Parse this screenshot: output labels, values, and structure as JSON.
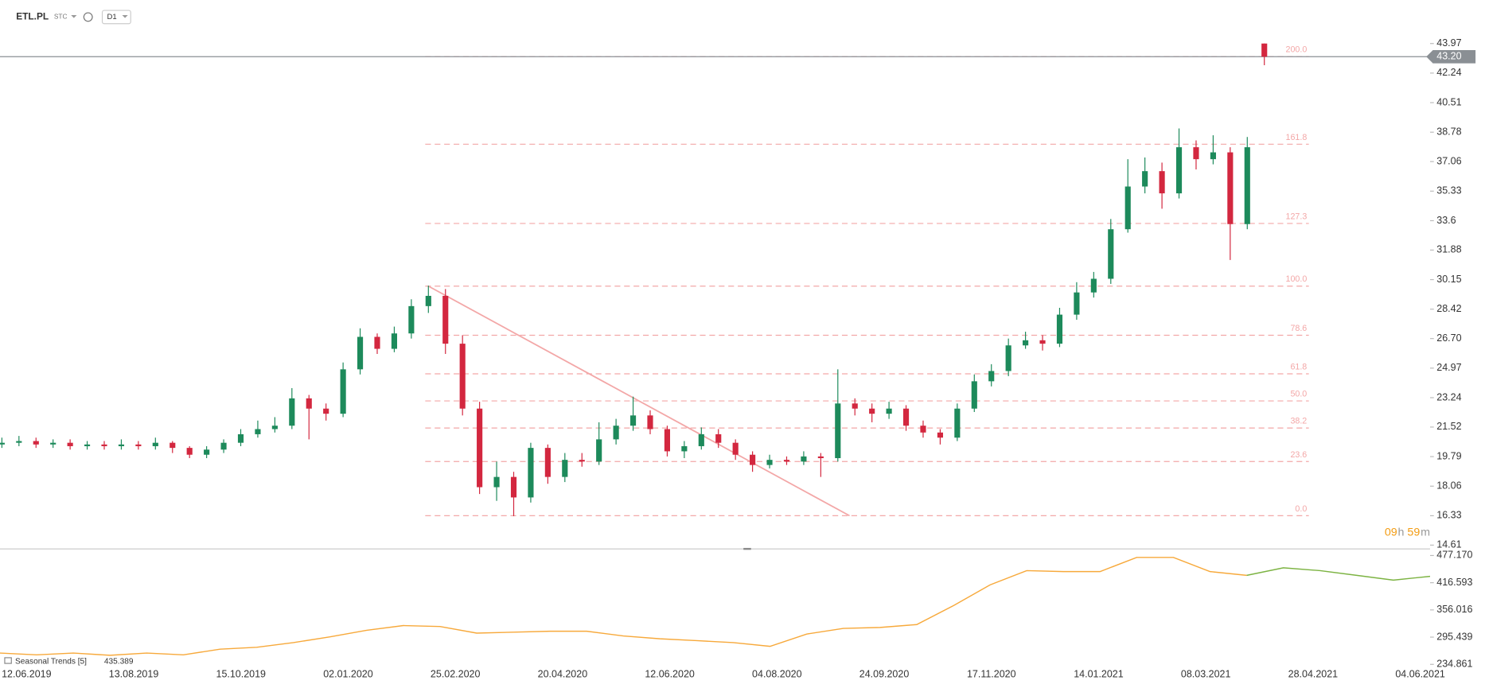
{
  "header": {
    "symbol": "ETL.PL",
    "market": "STC",
    "interval": "D1"
  },
  "countdown": [
    "09",
    "h",
    "59",
    "m"
  ],
  "x_axis_labels": [
    "12.06.2019",
    "13.08.2019",
    "15.10.2019",
    "02.01.2020",
    "25.02.2020",
    "20.04.2020",
    "12.06.2020",
    "04.08.2020",
    "24.09.2020",
    "17.11.2020",
    "14.01.2021",
    "08.03.2021",
    "28.04.2021",
    "04.06.2021"
  ],
  "chart_data": [
    {
      "type": "candlestick",
      "up_color": "#1d8a5b",
      "down_color": "#d3273f",
      "ylim": [
        14.61,
        43.97
      ],
      "yticks": [
        43.97,
        42.24,
        40.51,
        38.78,
        37.06,
        35.33,
        33.6,
        31.88,
        30.15,
        28.42,
        {
          "value": 26.7,
          "label": "26.70"
        },
        24.97,
        23.24,
        21.52,
        19.79,
        18.06,
        16.33,
        14.61
      ],
      "last_price": {
        "value": 43.2,
        "label": "43.20"
      },
      "fib": {
        "color": "#f3a7a7",
        "from": 29.77,
        "to": 16.33,
        "levels": [
          {
            "value": 200,
            "label": "200.0"
          },
          {
            "value": 161.8,
            "label": "161.8"
          },
          {
            "value": 127.3,
            "label": "127.3"
          },
          {
            "value": 100,
            "label": "100.0"
          },
          {
            "value": 78.6,
            "label": "78.6"
          },
          {
            "value": 61.8,
            "label": "61.8"
          },
          {
            "value": 50,
            "label": "50.0"
          },
          {
            "value": 38.2,
            "label": "38.2"
          },
          {
            "value": 23.6,
            "label": "23.6"
          },
          {
            "value": 0,
            "label": "0.0"
          }
        ]
      },
      "open": [
        20.5,
        20.6,
        20.7,
        20.5,
        20.6,
        20.4,
        20.5,
        20.4,
        20.5,
        20.4,
        20.6,
        20.3,
        19.9,
        20.2,
        20.6,
        21.1,
        21.4,
        21.6,
        23.2,
        22.6,
        22.3,
        24.9,
        26.8,
        26.1,
        27.0,
        28.6,
        29.2,
        26.4,
        22.6,
        18.0,
        18.6,
        17.4,
        20.3,
        18.6,
        19.6,
        19.5,
        20.8,
        21.6,
        22.2,
        21.4,
        20.1,
        20.4,
        21.1,
        20.6,
        19.9,
        19.3,
        19.6,
        19.5,
        19.8,
        19.7,
        22.9,
        22.6,
        22.3,
        22.6,
        21.6,
        21.2,
        20.9,
        22.6,
        24.2,
        24.8,
        26.3,
        26.6,
        26.4,
        28.1,
        29.4,
        30.2,
        33.1,
        35.6,
        36.5,
        35.2,
        37.9,
        37.2,
        37.6,
        33.4,
        43.97
      ],
      "high": [
        20.9,
        21.0,
        20.9,
        20.8,
        20.8,
        20.7,
        20.7,
        20.8,
        20.7,
        20.9,
        20.7,
        20.4,
        20.4,
        20.8,
        21.4,
        21.9,
        22.1,
        23.8,
        23.4,
        22.9,
        25.3,
        27.3,
        27.0,
        27.4,
        29.0,
        29.8,
        29.6,
        26.9,
        23.0,
        19.5,
        18.9,
        20.6,
        20.5,
        20.0,
        20.0,
        21.8,
        22.0,
        23.3,
        22.5,
        21.6,
        20.7,
        21.5,
        21.4,
        20.8,
        20.1,
        19.9,
        19.8,
        20.1,
        20.0,
        24.9,
        23.2,
        22.9,
        23.0,
        22.8,
        21.9,
        21.4,
        22.9,
        24.6,
        25.2,
        26.7,
        27.1,
        26.9,
        28.5,
        30.0,
        30.6,
        33.7,
        37.2,
        37.3,
        37.0,
        39.0,
        38.3,
        38.6,
        37.9,
        38.5,
        43.97
      ],
      "low": [
        20.3,
        20.4,
        20.3,
        20.3,
        20.2,
        20.2,
        20.2,
        20.2,
        20.2,
        20.2,
        20.0,
        19.7,
        19.7,
        20.0,
        20.4,
        20.9,
        21.2,
        21.4,
        20.8,
        21.9,
        22.1,
        24.6,
        25.8,
        25.9,
        26.7,
        28.2,
        25.8,
        22.2,
        17.6,
        17.2,
        16.3,
        17.1,
        18.2,
        18.3,
        19.2,
        19.3,
        20.5,
        21.3,
        21.1,
        19.8,
        19.7,
        20.2,
        20.3,
        19.6,
        18.9,
        19.1,
        19.3,
        19.3,
        18.6,
        19.5,
        22.2,
        21.8,
        22.0,
        21.3,
        20.9,
        20.5,
        20.7,
        22.4,
        23.9,
        24.5,
        26.1,
        26.0,
        26.2,
        27.8,
        29.1,
        29.9,
        32.9,
        35.2,
        34.3,
        34.9,
        36.6,
        36.9,
        31.3,
        33.1,
        42.7
      ],
      "close": [
        20.6,
        20.7,
        20.5,
        20.6,
        20.4,
        20.5,
        20.4,
        20.5,
        20.4,
        20.6,
        20.3,
        19.9,
        20.2,
        20.6,
        21.1,
        21.4,
        21.6,
        23.2,
        22.6,
        22.3,
        24.9,
        26.8,
        26.1,
        27.0,
        28.6,
        29.2,
        26.4,
        22.6,
        18.0,
        18.6,
        17.4,
        20.3,
        18.6,
        19.6,
        19.5,
        20.8,
        21.6,
        22.2,
        21.4,
        20.1,
        20.4,
        21.1,
        20.6,
        19.9,
        19.3,
        19.6,
        19.5,
        19.8,
        19.7,
        22.9,
        22.6,
        22.3,
        22.6,
        21.6,
        21.2,
        20.9,
        22.6,
        24.2,
        24.8,
        26.3,
        26.6,
        26.4,
        28.1,
        29.4,
        30.2,
        33.1,
        35.6,
        36.5,
        35.2,
        37.9,
        37.2,
        37.6,
        33.4,
        37.9,
        43.2
      ]
    },
    {
      "type": "line",
      "title": "Seasonal  Trends [5]",
      "last_value": 435.389,
      "ylim": [
        234.861,
        477.17
      ],
      "yticks": [
        {
          "value": 477.17,
          "label": "477.170"
        },
        416.593,
        356.016,
        295.439,
        234.861
      ],
      "series": [
        {
          "name": "Seasonal  Trends [5]",
          "color": "#f7a93b",
          "values": [
            260,
            256,
            260,
            255,
            260,
            256,
            268.6,
            272.8,
            283.3,
            296,
            310.7,
            321.2,
            319.1,
            304.4,
            306.5,
            308.6,
            308.6,
            298.1,
            291.8,
            287.6,
            283.3,
            274.9,
            302.3,
            314.9,
            317,
            323.4,
            365.5,
            411.8,
            443.5,
            441.4,
            441.4,
            473,
            473,
            441.4,
            433,
            null,
            null,
            null,
            null,
            null
          ]
        },
        {
          "color": "#7cb342",
          "values": [
            null,
            null,
            null,
            null,
            null,
            null,
            null,
            null,
            null,
            null,
            null,
            null,
            null,
            null,
            null,
            null,
            null,
            null,
            null,
            null,
            null,
            null,
            null,
            null,
            null,
            null,
            null,
            null,
            null,
            null,
            null,
            null,
            null,
            null,
            433,
            449.8,
            443.5,
            433,
            422.4,
            430.8
          ]
        }
      ]
    }
  ]
}
